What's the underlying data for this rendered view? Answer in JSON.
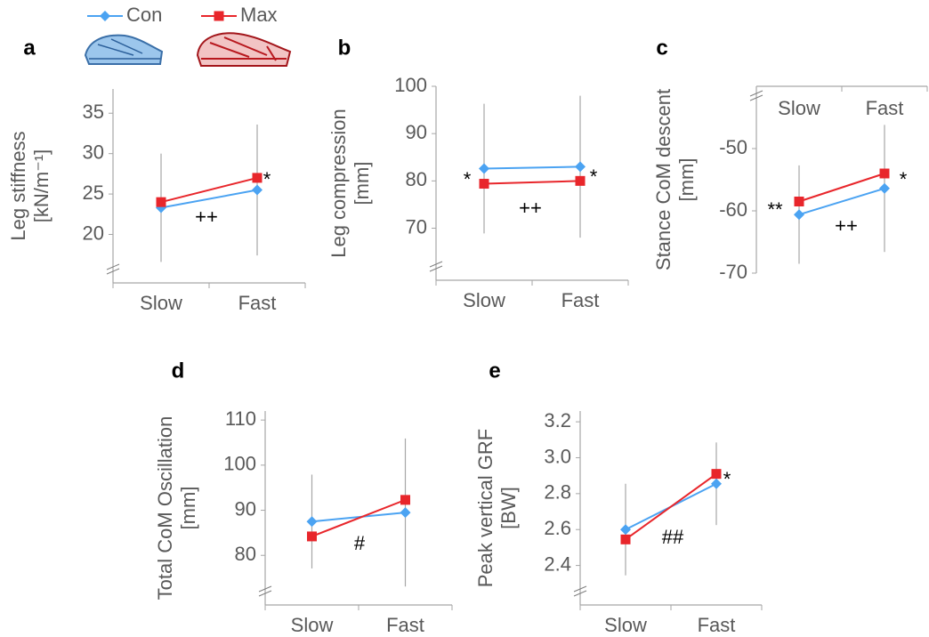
{
  "chart_data": [
    {
      "type": "line",
      "panel": "a",
      "ylabel": [
        "Leg stiffness",
        "[kN/m⁻¹]"
      ],
      "categories": [
        "Slow",
        "Fast"
      ],
      "series": [
        {
          "name": "Con",
          "color": "#4ba3f2",
          "marker": "diamond",
          "values": [
            23.3,
            25.5
          ],
          "errors": [
            6.7,
            8.1
          ]
        },
        {
          "name": "Max",
          "color": "#e8262b",
          "marker": "square",
          "values": [
            24.0,
            27.0
          ]
        }
      ],
      "ylim": [
        14,
        38
      ],
      "yticks": [
        20,
        25,
        30,
        35
      ],
      "legend": "top",
      "x_axis": "bottom",
      "annotations": [
        "*",
        "++"
      ]
    },
    {
      "type": "line",
      "panel": "b",
      "ylabel": [
        "Leg compression",
        "[mm]"
      ],
      "categories": [
        "Slow",
        "Fast"
      ],
      "series": [
        {
          "color": "#4ba3f2",
          "marker": "diamond",
          "values": [
            82.6,
            83.0
          ],
          "errors": [
            13.7,
            15.0
          ]
        },
        {
          "color": "#e8262b",
          "marker": "square",
          "values": [
            79.4,
            80.0
          ]
        }
      ],
      "ylim": [
        59,
        100
      ],
      "yticks": [
        70,
        80,
        90,
        100
      ],
      "x_axis": "bottom",
      "annotations": [
        "*",
        "*",
        "++"
      ]
    },
    {
      "type": "line",
      "panel": "c",
      "ylabel": [
        "Stance CoM descent",
        "[mm]"
      ],
      "categories": [
        "Slow",
        "Fast"
      ],
      "series": [
        {
          "color": "#4ba3f2",
          "marker": "diamond",
          "values": [
            -60.6,
            -56.4
          ],
          "errors": [
            7.9,
            10.2
          ]
        },
        {
          "color": "#e8262b",
          "marker": "square",
          "values": [
            -58.5,
            -54.0
          ]
        }
      ],
      "ylim": [
        -70,
        -40
      ],
      "yticks": [
        -70,
        -60,
        -50
      ],
      "x_axis": "top",
      "annotations": [
        "**",
        "*",
        "++"
      ]
    },
    {
      "type": "line",
      "panel": "d",
      "ylabel": [
        "Total CoM Oscillation",
        "[mm]"
      ],
      "categories": [
        "Slow",
        "Fast"
      ],
      "series": [
        {
          "color": "#4ba3f2",
          "marker": "diamond",
          "values": [
            87.5,
            89.5
          ],
          "errors": [
            10.4,
            16.4
          ]
        },
        {
          "color": "#e8262b",
          "marker": "square",
          "values": [
            84.2,
            92.3
          ]
        }
      ],
      "ylim": [
        69,
        112
      ],
      "yticks": [
        80,
        90,
        100,
        110
      ],
      "x_axis": "bottom",
      "annotations": [
        "#"
      ]
    },
    {
      "type": "line",
      "panel": "e",
      "ylabel": [
        "Peak vertical GRF",
        "[BW]"
      ],
      "categories": [
        "Slow",
        "Fast"
      ],
      "series": [
        {
          "color": "#4ba3f2",
          "marker": "diamond",
          "values": [
            2.6,
            2.855
          ],
          "errors": [
            0.255,
            0.23
          ]
        },
        {
          "color": "#e8262b",
          "marker": "square",
          "values": [
            2.545,
            2.91
          ]
        }
      ],
      "ylim": [
        2.18,
        3.26
      ],
      "yticks": [
        2.4,
        2.6,
        2.8,
        {
          "value": 3,
          "label": "3.0"
        },
        3.2
      ],
      "x_axis": "bottom",
      "annotations": [
        "*",
        "##"
      ]
    }
  ]
}
